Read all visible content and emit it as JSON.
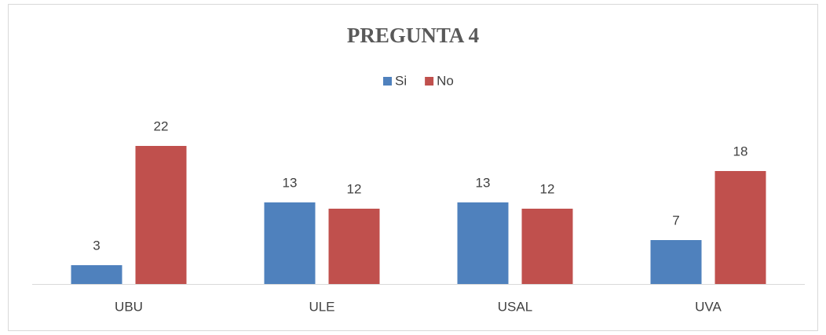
{
  "chart_data": {
    "type": "bar",
    "title": "PREGUNTA 4",
    "categories": [
      "UBU",
      "ULE",
      "USAL",
      "UVA"
    ],
    "series": [
      {
        "name": "Si",
        "color": "#4f81bd",
        "values": [
          3,
          13,
          13,
          7
        ]
      },
      {
        "name": "No",
        "color": "#c0504d",
        "values": [
          22,
          12,
          12,
          18
        ]
      }
    ],
    "ylim": [
      0,
      25
    ],
    "legend": "top"
  }
}
